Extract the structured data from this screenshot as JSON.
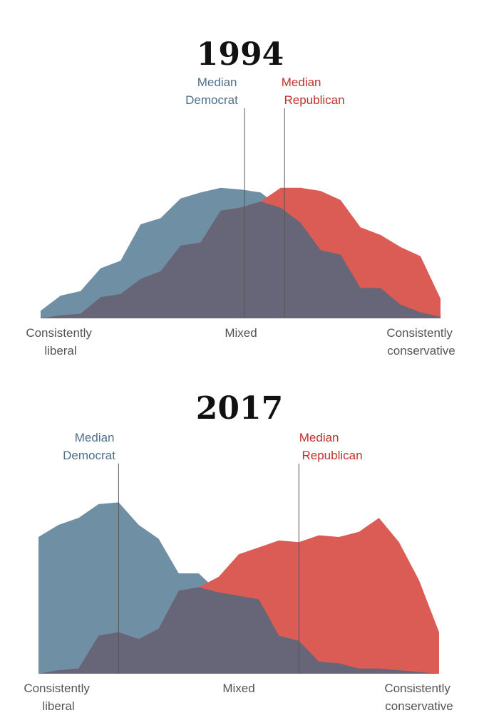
{
  "colors": {
    "democrat": "#6f8fa5",
    "republican": "#db5c55",
    "overlap": "#666678",
    "median_line": "#555555",
    "democrat_text": "#4f6f88",
    "republican_text": "#c0302a"
  },
  "chart_data": [
    {
      "type": "area",
      "title": "1994",
      "x_labels": {
        "left": [
          "Consistently",
          "liberal"
        ],
        "middle": "Mixed",
        "right": [
          "Consistently",
          "conservative"
        ]
      },
      "xlim": [
        0,
        1
      ],
      "median_labels": {
        "democrat": [
          "Median",
          "Democrat"
        ],
        "republican": [
          "Median",
          "Republican"
        ]
      },
      "medians": {
        "democrat": 0.51,
        "republican": 0.61
      },
      "series": [
        {
          "name": "Democrat",
          "x": [
            0,
            0.05,
            0.1,
            0.15,
            0.2,
            0.25,
            0.3,
            0.35,
            0.4,
            0.45,
            0.5,
            0.55,
            0.6,
            0.65,
            0.7,
            0.75,
            0.8,
            0.85,
            0.9,
            0.95,
            1
          ],
          "values": [
            0.05,
            0.15,
            0.18,
            0.33,
            0.38,
            0.62,
            0.66,
            0.79,
            0.83,
            0.86,
            0.85,
            0.83,
            0.73,
            0.63,
            0.45,
            0.42,
            0.2,
            0.2,
            0.09,
            0.04,
            0.01
          ]
        },
        {
          "name": "Republican",
          "x": [
            0,
            0.05,
            0.1,
            0.15,
            0.2,
            0.25,
            0.3,
            0.35,
            0.4,
            0.45,
            0.5,
            0.55,
            0.6,
            0.65,
            0.7,
            0.75,
            0.8,
            0.85,
            0.9,
            0.95,
            1
          ],
          "values": [
            0.0,
            0.02,
            0.03,
            0.14,
            0.16,
            0.26,
            0.31,
            0.48,
            0.5,
            0.71,
            0.73,
            0.77,
            0.86,
            0.86,
            0.84,
            0.78,
            0.6,
            0.55,
            0.47,
            0.41,
            0.13
          ]
        }
      ]
    },
    {
      "type": "area",
      "title": "2017",
      "x_labels": {
        "left": [
          "Consistently",
          "liberal"
        ],
        "middle": "Mixed",
        "right": [
          "Consistently",
          "conservative"
        ]
      },
      "xlim": [
        0,
        1
      ],
      "median_labels": {
        "democrat": [
          "Median",
          "Democrat"
        ],
        "republican": [
          "Median",
          "Republican"
        ]
      },
      "medians": {
        "democrat": 0.2,
        "republican": 0.65
      },
      "series": [
        {
          "name": "Democrat",
          "x": [
            0,
            0.05,
            0.1,
            0.15,
            0.2,
            0.25,
            0.3,
            0.35,
            0.4,
            0.45,
            0.5,
            0.55,
            0.6,
            0.65,
            0.7,
            0.75,
            0.8,
            0.85,
            0.9,
            0.95,
            1
          ],
          "values": [
            0.79,
            0.86,
            0.9,
            0.98,
            0.99,
            0.86,
            0.78,
            0.58,
            0.58,
            0.47,
            0.45,
            0.43,
            0.22,
            0.19,
            0.07,
            0.06,
            0.03,
            0.03,
            0.02,
            0.01,
            0.0
          ]
        },
        {
          "name": "Republican",
          "x": [
            0,
            0.05,
            0.1,
            0.15,
            0.2,
            0.25,
            0.3,
            0.35,
            0.4,
            0.45,
            0.5,
            0.55,
            0.6,
            0.65,
            0.7,
            0.75,
            0.8,
            0.85,
            0.9,
            0.95,
            1
          ],
          "values": [
            0.0,
            0.02,
            0.03,
            0.22,
            0.24,
            0.2,
            0.26,
            0.48,
            0.5,
            0.56,
            0.69,
            0.73,
            0.77,
            0.76,
            0.8,
            0.79,
            0.82,
            0.9,
            0.76,
            0.54,
            0.24
          ]
        }
      ]
    }
  ]
}
